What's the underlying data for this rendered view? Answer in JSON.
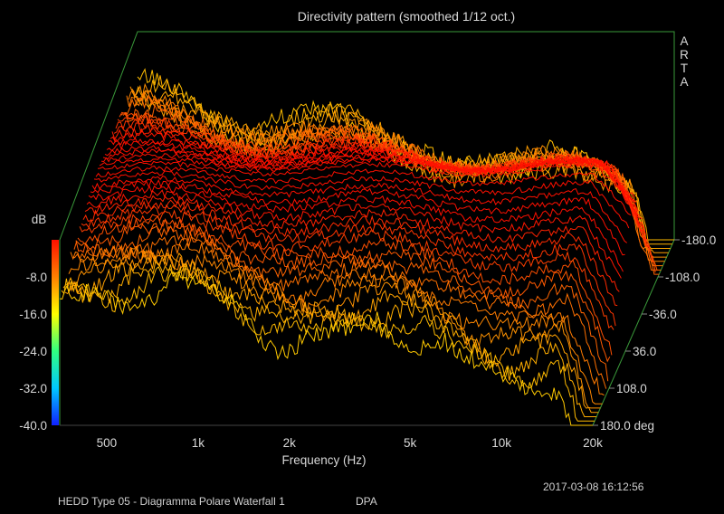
{
  "chart_data": {
    "type": "waterfall-3d",
    "title": "Directivity pattern (smoothed 1/12 oct.)",
    "xlabel": "Frequency (Hz)",
    "ylabel": "dB",
    "brand": "ARTA",
    "x_scale": "log",
    "x_range_hz": [
      350,
      20000
    ],
    "x_ticks": [
      {
        "hz": 500,
        "label": "500"
      },
      {
        "hz": 1000,
        "label": "1k"
      },
      {
        "hz": 2000,
        "label": "2k"
      },
      {
        "hz": 5000,
        "label": "5k"
      },
      {
        "hz": 10000,
        "label": "10k"
      },
      {
        "hz": 20000,
        "label": "20k"
      }
    ],
    "db_range": [
      -40,
      0
    ],
    "db_ticks": [
      "-8.0",
      "-16.0",
      "-24.0",
      "-32.0",
      "-40.0"
    ],
    "db_tick_values": [
      -8,
      -16,
      -24,
      -32,
      -40
    ],
    "angle_range_deg": [
      -180,
      180
    ],
    "angle_ticks": [
      "-180.0",
      "-108.0",
      "-36.0",
      "36.0",
      "108.0",
      "180.0 deg"
    ],
    "angle_tick_values": [
      -180,
      -108,
      -36,
      36,
      108,
      180
    ],
    "colorscale": [
      "#1020ff",
      "#00c8ff",
      "#30ff80",
      "#ffff00",
      "#ff8000",
      "#ff1000"
    ],
    "frame_color": "#3a9a3a",
    "n_curves": 44
  },
  "footer": {
    "timestamp": "2017-03-08  16:12:56",
    "caption": "HEDD Type 05 - Diagramma Polare Waterfall 1",
    "tag": "DPA"
  }
}
